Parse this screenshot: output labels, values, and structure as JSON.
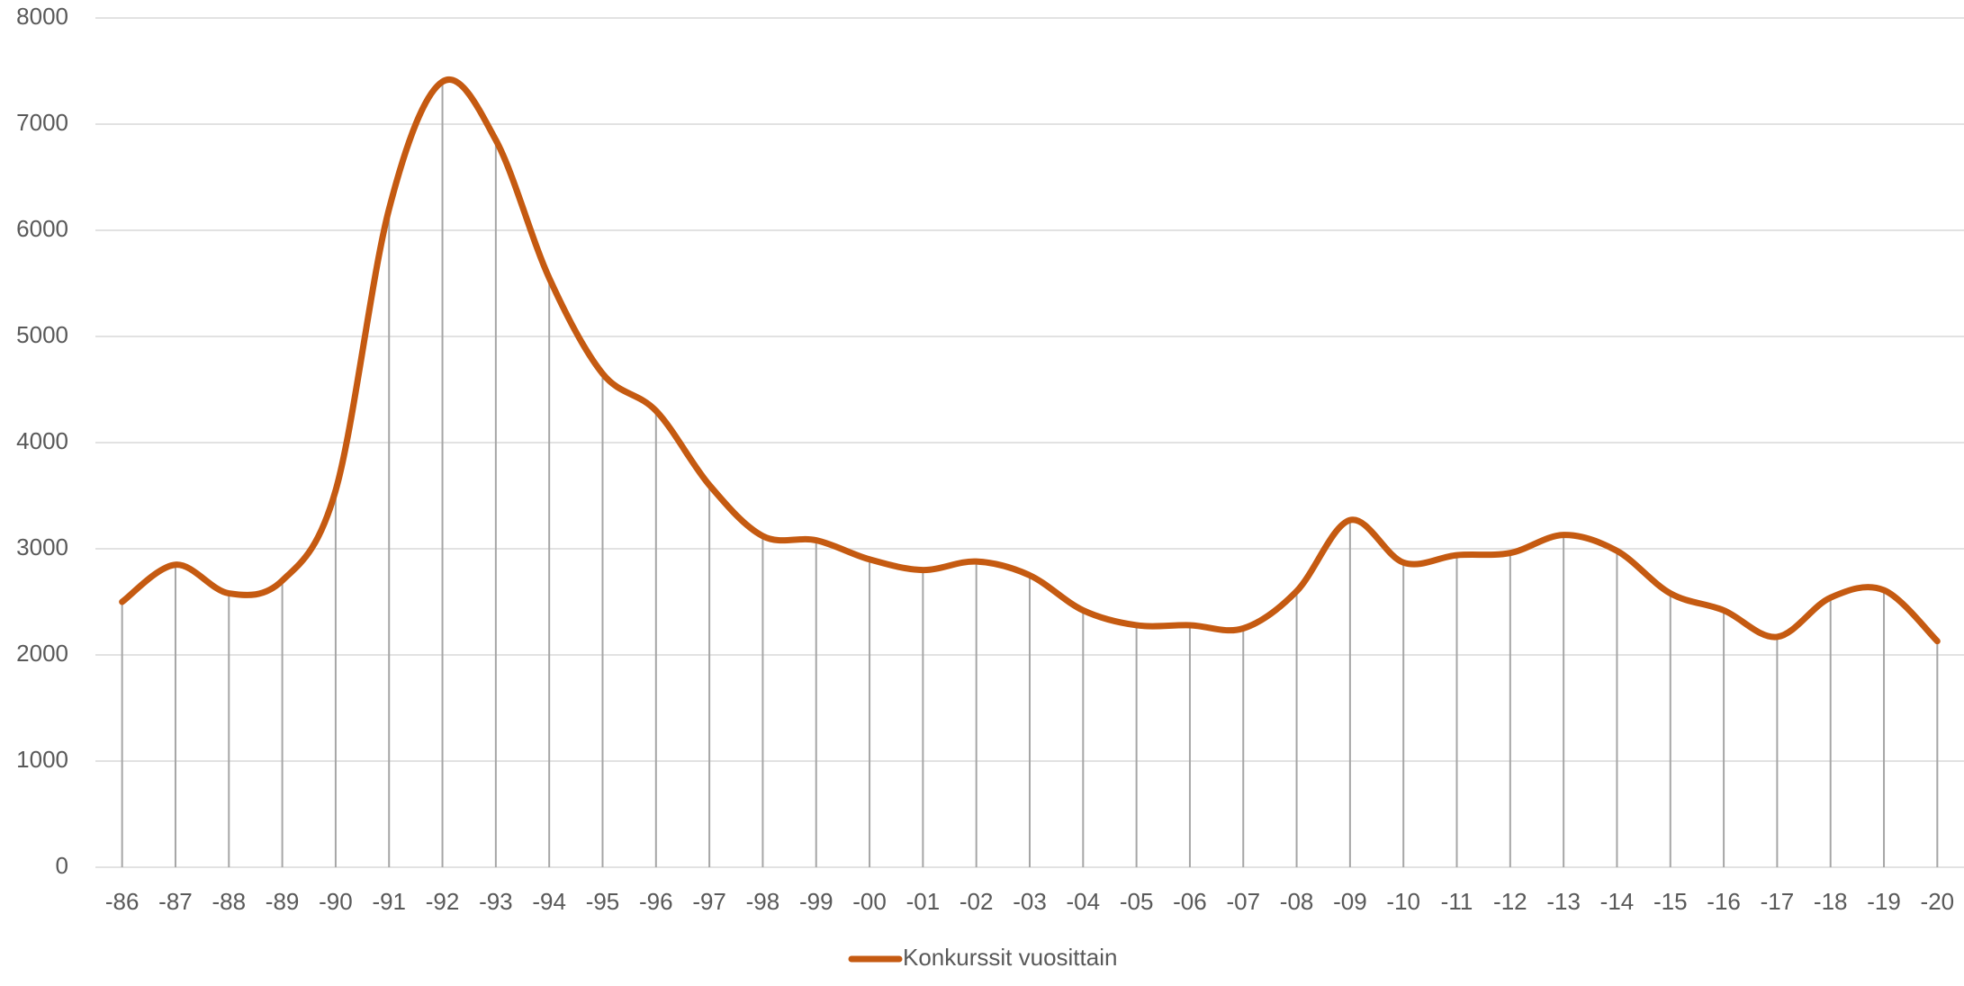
{
  "chart_data": {
    "type": "line",
    "categories": [
      "-86",
      "-87",
      "-88",
      "-89",
      "-90",
      "-91",
      "-92",
      "-93",
      "-94",
      "-95",
      "-96",
      "-97",
      "-98",
      "-99",
      "-00",
      "-01",
      "-02",
      "-03",
      "-04",
      "-05",
      "-06",
      "-07",
      "-08",
      "-09",
      "-10",
      "-11",
      "-12",
      "-13",
      "-14",
      "-15",
      "-16",
      "-17",
      "-18",
      "-19",
      "-20"
    ],
    "series": [
      {
        "name": "Konkurssit vuosittain",
        "color": "#c55a11",
        "values": [
          2500,
          2850,
          2580,
          2700,
          3550,
          6200,
          7400,
          6850,
          5550,
          4650,
          4300,
          3600,
          3120,
          3080,
          2900,
          2800,
          2880,
          2750,
          2420,
          2280,
          2280,
          2250,
          2600,
          3270,
          2870,
          2940,
          2960,
          3130,
          2980,
          2580,
          2420,
          2170,
          2540,
          2610,
          2130
        ]
      }
    ],
    "ylim": [
      0,
      8000
    ],
    "yticks": [
      0,
      1000,
      2000,
      3000,
      4000,
      5000,
      6000,
      7000,
      8000
    ],
    "grid": true,
    "smooth": true,
    "drop_lines": true,
    "legend": "bottom"
  }
}
